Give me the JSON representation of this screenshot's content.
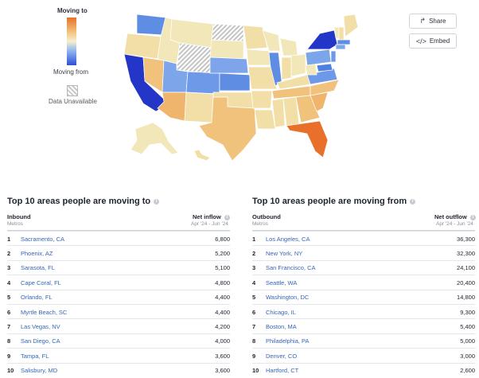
{
  "legend": {
    "moving_to": "Moving to",
    "moving_from": "Moving from",
    "data_unavailable": "Data Unavailable",
    "colors": {
      "to_strong": "#e8702a",
      "to_mid": "#f4c27a",
      "neutral": "#f2e7b8",
      "from_mid": "#8fb5ee",
      "from_strong": "#2f4fd6",
      "unavailable": "#c9c9c9"
    }
  },
  "actions": {
    "share_label": "Share",
    "share_icon": "share-arrow-icon",
    "embed_label": "Embed",
    "embed_icon": "code-icon"
  },
  "inbound": {
    "title": "Top 10 areas people are moving to",
    "col_left": "Inbound",
    "col_left_sub": "Metros",
    "col_right": "Net inflow",
    "col_right_sub": "Apr '24 - Jun '24",
    "rows": [
      {
        "rank": "1",
        "name": "Sacramento, CA",
        "value": "6,800"
      },
      {
        "rank": "2",
        "name": "Phoenix, AZ",
        "value": "5,200"
      },
      {
        "rank": "3",
        "name": "Sarasota, FL",
        "value": "5,100"
      },
      {
        "rank": "4",
        "name": "Cape Coral, FL",
        "value": "4,800"
      },
      {
        "rank": "5",
        "name": "Orlando, FL",
        "value": "4,400"
      },
      {
        "rank": "6",
        "name": "Myrtle Beach, SC",
        "value": "4,400"
      },
      {
        "rank": "7",
        "name": "Las Vegas, NV",
        "value": "4,200"
      },
      {
        "rank": "8",
        "name": "San Diego, CA",
        "value": "4,000"
      },
      {
        "rank": "9",
        "name": "Tampa, FL",
        "value": "3,600"
      },
      {
        "rank": "10",
        "name": "Salisbury, MD",
        "value": "3,600"
      }
    ]
  },
  "outbound": {
    "title": "Top 10 areas people are moving from",
    "col_left": "Outbound",
    "col_left_sub": "Metros",
    "col_right": "Net outflow",
    "col_right_sub": "Apr '24 - Jun '24",
    "rows": [
      {
        "rank": "1",
        "name": "Los Angeles, CA",
        "value": "36,300"
      },
      {
        "rank": "2",
        "name": "New York, NY",
        "value": "32,300"
      },
      {
        "rank": "3",
        "name": "San Francisco, CA",
        "value": "24,100"
      },
      {
        "rank": "4",
        "name": "Seattle, WA",
        "value": "20,400"
      },
      {
        "rank": "5",
        "name": "Washington, DC",
        "value": "14,800"
      },
      {
        "rank": "6",
        "name": "Chicago, IL",
        "value": "9,300"
      },
      {
        "rank": "7",
        "name": "Boston, MA",
        "value": "5,400"
      },
      {
        "rank": "8",
        "name": "Philadelphia, PA",
        "value": "5,000"
      },
      {
        "rank": "9",
        "name": "Denver, CO",
        "value": "3,000"
      },
      {
        "rank": "10",
        "name": "Hartford, CT",
        "value": "2,600"
      }
    ]
  }
}
